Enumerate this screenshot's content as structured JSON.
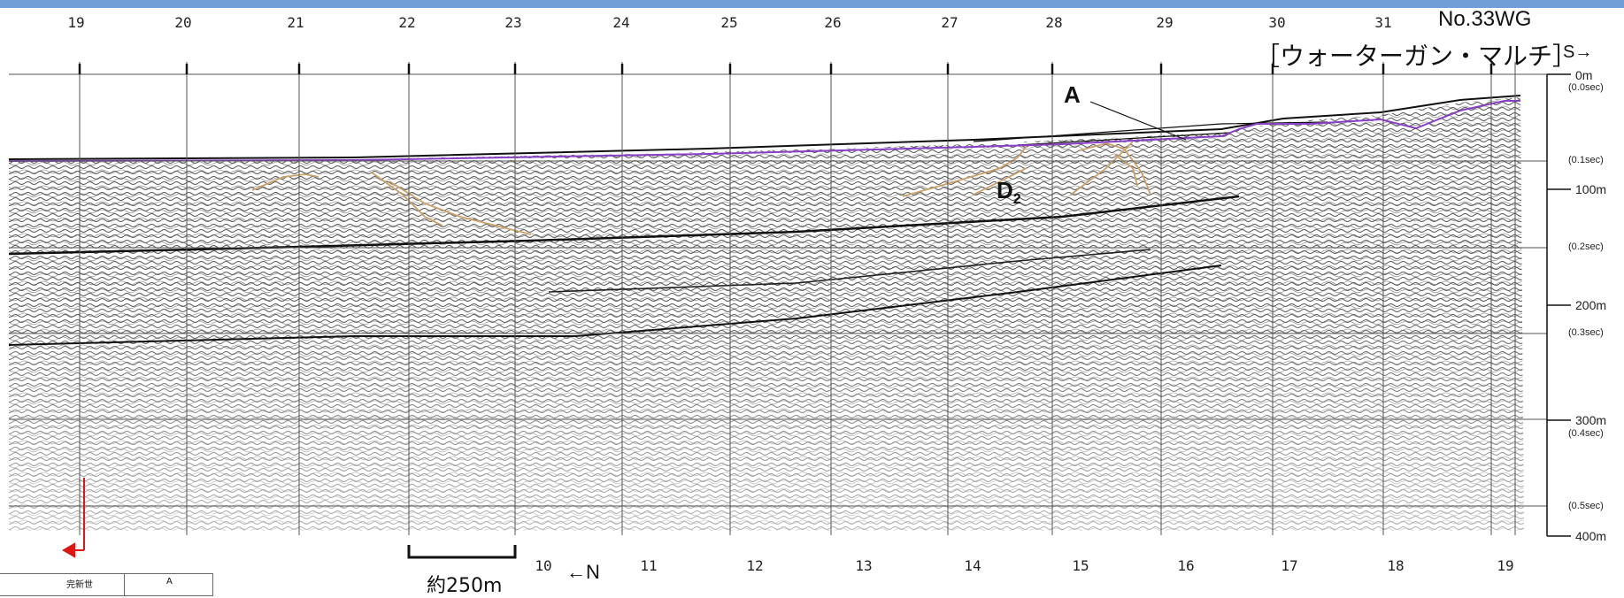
{
  "header": {
    "title": "No.33WG",
    "subtitle": "［ウォーターガン・マルチ］",
    "direction_right": "S→",
    "direction_left": "←N"
  },
  "top_ticks": [
    "19",
    "20",
    "21",
    "22",
    "23",
    "24",
    "25",
    "26",
    "27",
    "28",
    "29",
    "30",
    "31"
  ],
  "bottom_ticks": [
    "10",
    "11",
    "12",
    "13",
    "14",
    "15",
    "16",
    "17",
    "18",
    "19"
  ],
  "depth_axis": [
    {
      "depth": "0m",
      "time": "(0.0sec)"
    },
    {
      "depth": "",
      "time": "(0.1sec)"
    },
    {
      "depth": "100m",
      "time": ""
    },
    {
      "depth": "",
      "time": "(0.2sec)"
    },
    {
      "depth": "200m",
      "time": ""
    },
    {
      "depth": "",
      "time": "(0.3sec)"
    },
    {
      "depth": "300m",
      "time": "(0.4sec)"
    },
    {
      "depth": "",
      "time": "(0.5sec)"
    },
    {
      "depth": "400m",
      "time": ""
    }
  ],
  "annotations": {
    "reflector_A": "A",
    "unit_D": "D",
    "unit_D_sub": "2"
  },
  "scale_bar": {
    "label": "約250m"
  },
  "legend": {
    "col1": "完新世",
    "col2": "A"
  },
  "colors": {
    "seafloor": "#8a3fc7",
    "faults": "#c9a16a",
    "marker": "#e01515",
    "banner": "#6f9fd6"
  }
}
